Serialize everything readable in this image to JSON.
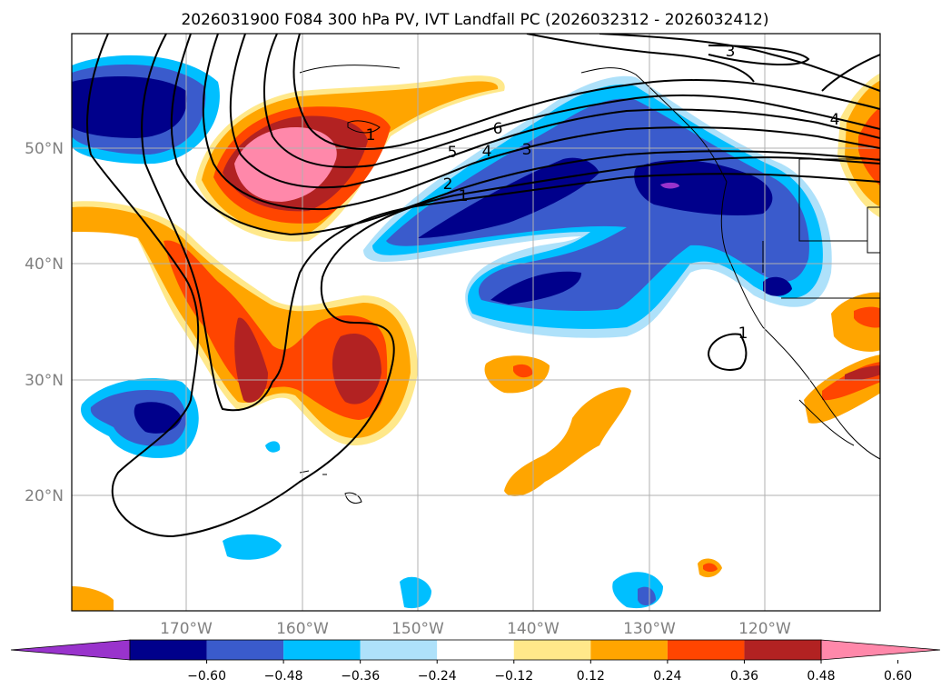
{
  "title": "2026031900 F084 300 hPa PV, IVT Landfall PC (2026032312 - 2026032412)",
  "map": {
    "lat_labels": [
      "50°N",
      "40°N",
      "30°N",
      "20°N"
    ],
    "lon_labels": [
      "170°W",
      "160°W",
      "150°W",
      "140°W",
      "130°W",
      "120°W"
    ],
    "lat_range": [
      10,
      60
    ],
    "lon_range": [
      -180,
      -110
    ]
  },
  "contour_labels": [
    "3",
    "4",
    "6",
    "5",
    "4",
    "3",
    "2",
    "1",
    "1",
    "1"
  ],
  "colorbar": {
    "ticks": [
      "−0.60",
      "−0.48",
      "−0.36",
      "−0.24",
      "−0.12",
      "0.12",
      "0.24",
      "0.36",
      "0.48",
      "0.60"
    ],
    "colors": [
      "#9933cc",
      "#00008b",
      "#3a5bcc",
      "#00bfff",
      "#aee1fa",
      "#ffffff",
      "#ffe88a",
      "#ffa500",
      "#ff4500",
      "#b22222",
      "#ff88aa"
    ]
  },
  "colors": {
    "grid": "#b0b0b0",
    "axis_text": "#808080",
    "contour": "#000000"
  }
}
